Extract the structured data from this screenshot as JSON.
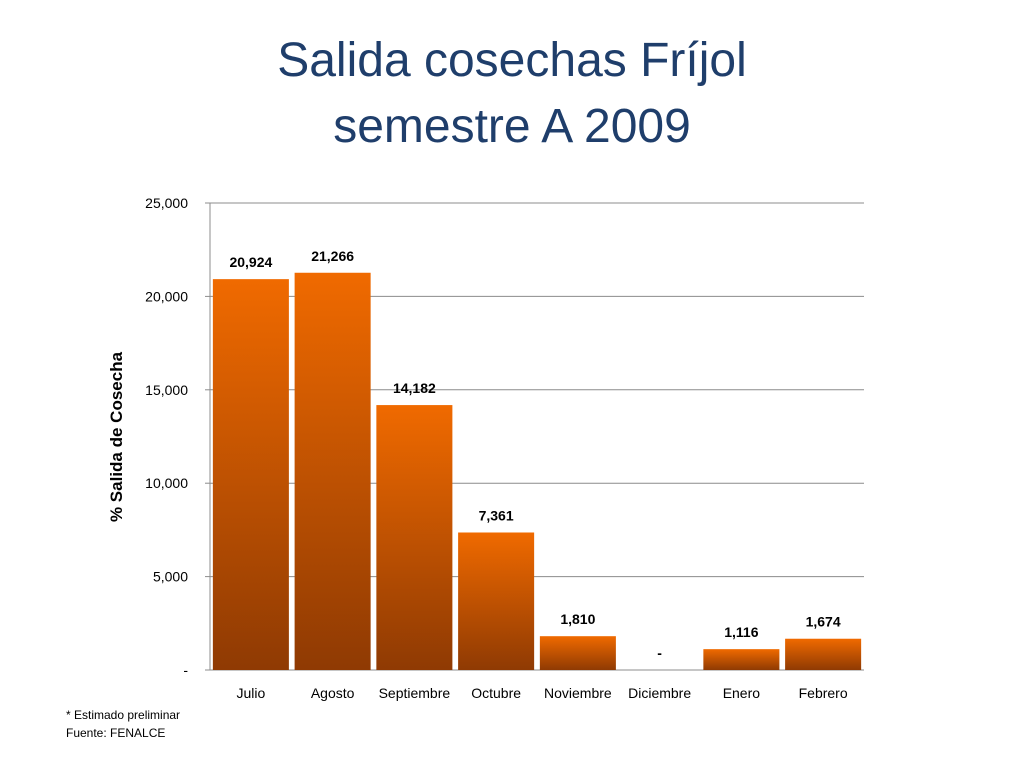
{
  "slide": {
    "title_line1": "Salida cosechas Fríjol",
    "title_line2": "semestre A 2009",
    "footnote": "* Estimado preliminar",
    "source": "Fuente: FENALCE"
  },
  "colors": {
    "title": "#1f3e6b",
    "bar_top": "#f06a00",
    "bar_bottom": "#8f3a03",
    "grid": "#8c8c8c"
  },
  "chart_data": {
    "type": "bar",
    "title": "",
    "xlabel": "",
    "ylabel": "% Salida de Cosecha",
    "categories": [
      "Julio",
      "Agosto",
      "Septiembre",
      "Octubre",
      "Noviembre",
      "Diciembre",
      "Enero",
      "Febrero"
    ],
    "values": [
      20924,
      21266,
      14182,
      7361,
      1810,
      0,
      1116,
      1674
    ],
    "data_labels": [
      "20,924",
      "21,266",
      "14,182",
      "7,361",
      "1,810",
      "-",
      "1,116",
      "1,674"
    ],
    "yticks": [
      0,
      5000,
      10000,
      15000,
      20000,
      25000
    ],
    "ytick_labels": [
      "-",
      "5,000",
      "10,000",
      "15,000",
      "20,000",
      "25,000"
    ],
    "ylim": [
      0,
      25000
    ],
    "grid": true,
    "legend": "none"
  }
}
